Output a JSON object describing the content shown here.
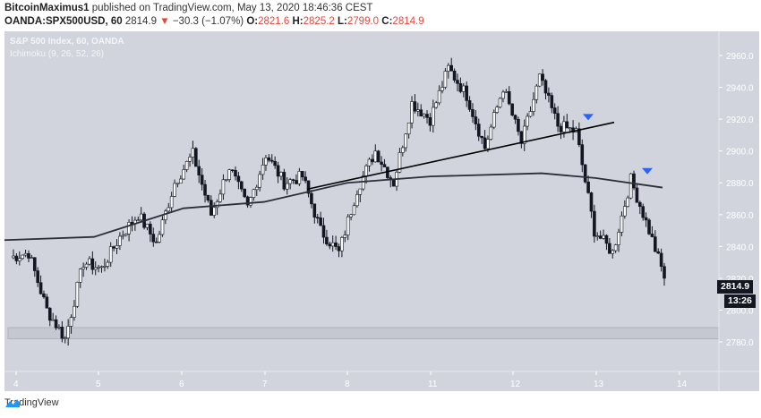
{
  "header": {
    "publisher": "BitcoinMaximus1",
    "published_text": " published on TradingView.com, May 13, 2020 18:46:36 CEST",
    "symbol": "OANDA:SPX500USD, 60",
    "last": "2814.9",
    "change": "−30.3 (−1.07%)",
    "o_label": "O:",
    "o": "2821.6",
    "h_label": "H:",
    "h": "2825.2",
    "l_label": "L:",
    "l": "2799.0",
    "c_label": "C:",
    "c": "2814.9"
  },
  "legend": {
    "title": "S&P 500 Index, 60, OANDA",
    "indicator": "Ichimoku (9, 26, 52, 26)"
  },
  "price_axis": {
    "ticks": [
      "2960.0",
      "2940.0",
      "2920.0",
      "2900.0",
      "2880.0",
      "2860.0",
      "2840.0",
      "2820.0",
      "2800.0",
      "2780.0"
    ],
    "current_price": "2814.9",
    "countdown": "13:26"
  },
  "time_axis": {
    "ticks": [
      "4",
      "5",
      "6",
      "7",
      "8",
      "11",
      "12",
      "13",
      "14"
    ]
  },
  "footer": {
    "brand": "TradingView"
  },
  "colors": {
    "background": "#d1d4dc",
    "bull_body": "#ffffff",
    "bear_body": "#131722",
    "wick": "#131722",
    "trendline": "#000000",
    "ma_line": "#2a2e39",
    "marker": "#2962ff",
    "axis_text": "#ffffff"
  },
  "chart_data": {
    "type": "candlestick",
    "title": "S&P 500 Index, 60, OANDA",
    "subtitle": "Ichimoku (9, 26, 52, 26)",
    "xlabel": "",
    "ylabel": "",
    "x_tick_labels": [
      "4",
      "5",
      "6",
      "7",
      "8",
      "11",
      "12",
      "13",
      "14"
    ],
    "y_tick_labels": [
      "2960.0",
      "2940.0",
      "2920.0",
      "2900.0",
      "2880.0",
      "2860.0",
      "2840.0",
      "2820.0",
      "2800.0",
      "2780.0"
    ],
    "ylim": [
      2770,
      2975
    ],
    "grid": false,
    "last_price": 2814.9,
    "countdown": "13:26",
    "support_zone": [
      2782,
      2789
    ],
    "trendline": {
      "from": [
        "7 (late)",
        2876
      ],
      "to": [
        "13",
        2918
      ]
    },
    "moving_average_approx": [
      {
        "x": "4",
        "y": 2844
      },
      {
        "x": "5",
        "y": 2846
      },
      {
        "x": "6",
        "y": 2864
      },
      {
        "x": "7",
        "y": 2868
      },
      {
        "x": "8",
        "y": 2878
      },
      {
        "x": "11",
        "y": 2884
      },
      {
        "x": "12",
        "y": 2886
      },
      {
        "x": "13",
        "y": 2884
      },
      {
        "x": "13.6",
        "y": 2877
      }
    ],
    "sell_markers": [
      {
        "x": "12.9",
        "y": 2921
      },
      {
        "x": "13.6",
        "y": 2887
      }
    ],
    "daily_ohlc_approx": [
      {
        "day": "4",
        "open": 2833,
        "high": 2846,
        "low": 2780,
        "close": 2836
      },
      {
        "day": "5",
        "open": 2836,
        "high": 2866,
        "low": 2820,
        "close": 2860
      },
      {
        "day": "6",
        "open": 2860,
        "high": 2898,
        "low": 2850,
        "close": 2870
      },
      {
        "day": "7",
        "open": 2870,
        "high": 2900,
        "low": 2830,
        "close": 2850
      },
      {
        "day": "8",
        "open": 2850,
        "high": 2932,
        "low": 2848,
        "close": 2930
      },
      {
        "day": "11",
        "open": 2925,
        "high": 2953,
        "low": 2898,
        "close": 2912
      },
      {
        "day": "12",
        "open": 2912,
        "high": 2946,
        "low": 2902,
        "close": 2915
      },
      {
        "day": "13",
        "open": 2915,
        "high": 2920,
        "low": 2799,
        "close": 2814.9
      }
    ]
  }
}
